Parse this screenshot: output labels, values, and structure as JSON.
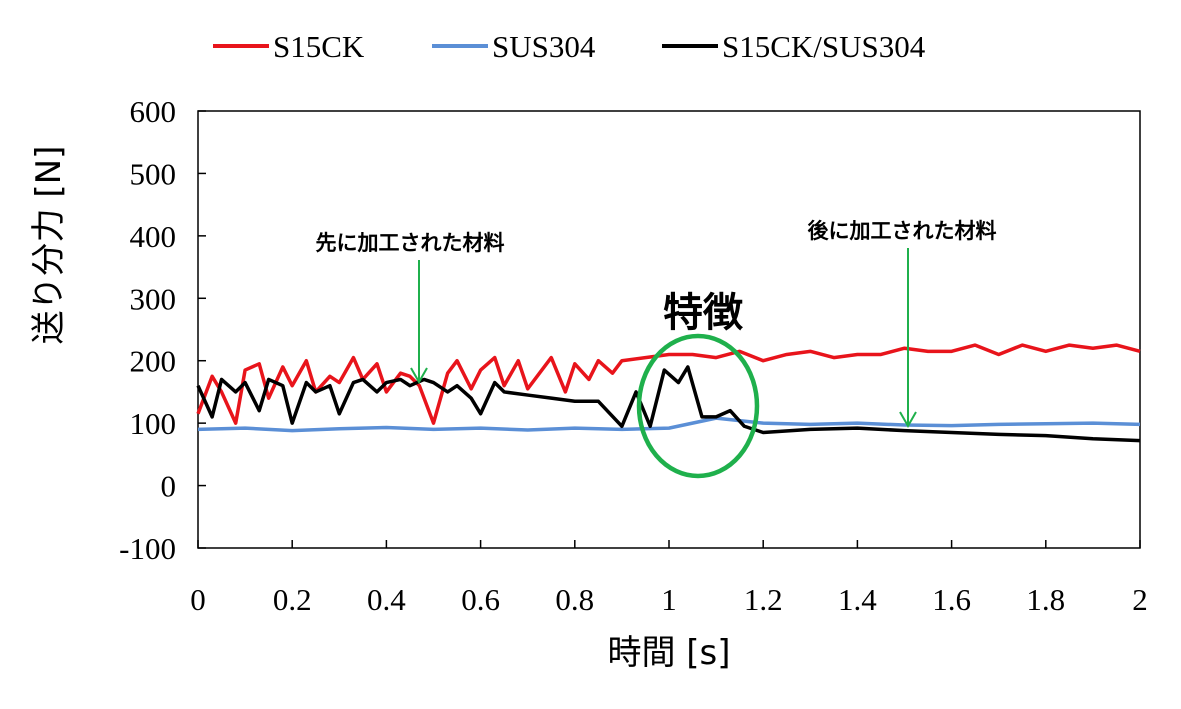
{
  "chart_data": {
    "type": "line",
    "xlabel": "時間 [s]",
    "ylabel": "送り分力 [N]",
    "xlim": [
      0,
      2
    ],
    "ylim": [
      -100,
      600
    ],
    "xticks": [
      "0",
      "0.2",
      "0.4",
      "0.6",
      "0.8",
      "1",
      "1.2",
      "1.4",
      "1.6",
      "1.8",
      "2"
    ],
    "yticks": [
      "-100",
      "0",
      "100",
      "200",
      "300",
      "400",
      "500",
      "600"
    ],
    "legend_position": "top",
    "series": [
      {
        "name": "S15CK",
        "color": "#e8141b",
        "x": [
          0,
          0.03,
          0.05,
          0.08,
          0.1,
          0.13,
          0.15,
          0.18,
          0.2,
          0.23,
          0.25,
          0.28,
          0.3,
          0.33,
          0.35,
          0.38,
          0.4,
          0.43,
          0.45,
          0.47,
          0.5,
          0.53,
          0.55,
          0.58,
          0.6,
          0.63,
          0.65,
          0.68,
          0.7,
          0.73,
          0.75,
          0.78,
          0.8,
          0.83,
          0.85,
          0.88,
          0.9,
          0.95,
          1.0,
          1.05,
          1.1,
          1.15,
          1.2,
          1.25,
          1.3,
          1.35,
          1.4,
          1.45,
          1.5,
          1.55,
          1.6,
          1.65,
          1.7,
          1.75,
          1.8,
          1.85,
          1.9,
          1.95,
          2.0
        ],
        "y": [
          115,
          175,
          150,
          100,
          185,
          195,
          140,
          190,
          160,
          200,
          150,
          175,
          165,
          205,
          170,
          195,
          150,
          180,
          175,
          160,
          100,
          180,
          200,
          155,
          185,
          205,
          160,
          200,
          155,
          185,
          205,
          150,
          195,
          170,
          200,
          180,
          200,
          205,
          210,
          210,
          205,
          215,
          200,
          210,
          215,
          205,
          210,
          210,
          220,
          215,
          215,
          225,
          210,
          225,
          215,
          225,
          220,
          225,
          215
        ]
      },
      {
        "name": "SUS304",
        "color": "#5b8fd6",
        "x": [
          0,
          0.1,
          0.2,
          0.3,
          0.4,
          0.5,
          0.6,
          0.7,
          0.8,
          0.9,
          1.0,
          1.05,
          1.1,
          1.2,
          1.3,
          1.4,
          1.5,
          1.6,
          1.7,
          1.8,
          1.9,
          2.0
        ],
        "y": [
          90,
          92,
          88,
          91,
          93,
          90,
          92,
          89,
          92,
          90,
          92,
          100,
          108,
          100,
          98,
          100,
          97,
          96,
          98,
          99,
          100,
          98
        ]
      },
      {
        "name": "S15CK/SUS304",
        "color": "#000000",
        "x": [
          0,
          0.03,
          0.05,
          0.08,
          0.1,
          0.13,
          0.15,
          0.18,
          0.2,
          0.23,
          0.25,
          0.28,
          0.3,
          0.33,
          0.35,
          0.38,
          0.4,
          0.43,
          0.45,
          0.48,
          0.5,
          0.53,
          0.55,
          0.58,
          0.6,
          0.63,
          0.65,
          0.7,
          0.75,
          0.8,
          0.85,
          0.9,
          0.93,
          0.96,
          0.99,
          1.02,
          1.04,
          1.07,
          1.1,
          1.13,
          1.16,
          1.2,
          1.3,
          1.4,
          1.5,
          1.6,
          1.7,
          1.8,
          1.9,
          2.0
        ],
        "y": [
          160,
          110,
          170,
          150,
          165,
          120,
          170,
          160,
          100,
          165,
          150,
          160,
          115,
          165,
          170,
          150,
          165,
          170,
          160,
          170,
          165,
          150,
          160,
          140,
          115,
          165,
          150,
          145,
          140,
          135,
          135,
          95,
          150,
          95,
          185,
          165,
          190,
          110,
          110,
          120,
          95,
          85,
          90,
          92,
          88,
          85,
          82,
          80,
          75,
          72
        ]
      }
    ],
    "annotations": [
      {
        "text": "先に加工された材料",
        "points_to_x": 0.47
      },
      {
        "text": "後に加工された材料",
        "points_to_x": 1.51
      },
      {
        "text": "特徴",
        "marks": "circle around 1.0-1.15 s"
      }
    ],
    "annotation_color": "#1fb04c"
  }
}
